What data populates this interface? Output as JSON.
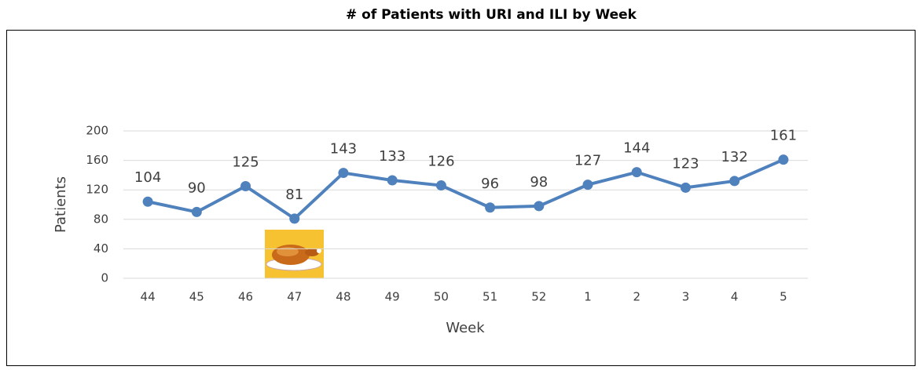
{
  "chart_data": {
    "type": "line",
    "title": "# of Patients with URI and ILI by Week",
    "x_label": "Week",
    "y_label": "Patients",
    "categories": [
      "44",
      "45",
      "46",
      "47",
      "48",
      "49",
      "50",
      "51",
      "52",
      "1",
      "2",
      "3",
      "4",
      "5"
    ],
    "values": [
      104,
      90,
      125,
      81,
      143,
      133,
      126,
      96,
      98,
      127,
      144,
      123,
      132,
      161
    ],
    "color": "#4f81bd",
    "ylim": [
      0,
      200
    ],
    "yticks": [
      0,
      40,
      80,
      120,
      160,
      200
    ],
    "grid": true
  }
}
